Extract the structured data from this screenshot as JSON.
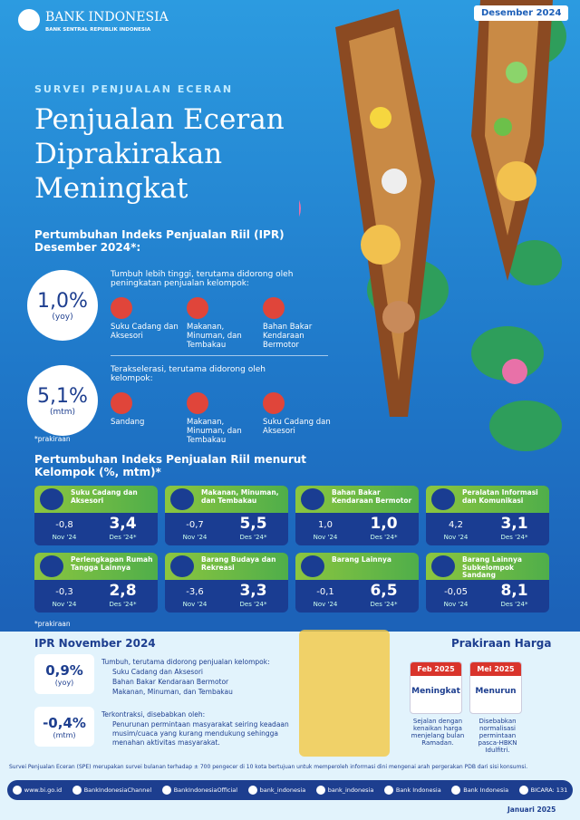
{
  "header": {
    "logo_name": "BANK INDONESIA",
    "logo_tagline": "BANK SENTRAL REPUBLIK INDONESIA",
    "date": "Desember 2024"
  },
  "hero": {
    "kicker": "SURVEI PENJUALAN ECERAN",
    "title_lines": [
      "Penjualan Eceran",
      "Diprakirakan",
      "Meningkat"
    ]
  },
  "ipr_december": {
    "heading": "Pertumbuhan Indeks Penjualan Riil (IPR) Desember 2024*:",
    "indicators": [
      {
        "value": "1,0%",
        "unit": "(yoy)",
        "description": "Tumbuh lebih tinggi, terutama didorong oleh peningkatan penjualan kelompok:",
        "groups": [
          "Suku Cadang dan Aksesori",
          "Makanan, Minuman, dan Tembakau",
          "Bahan Bakar Kendaraan Bermotor"
        ]
      },
      {
        "value": "5,1%",
        "unit": "(mtm)",
        "description": "Terakselerasi, terutama didorong oleh kelompok:",
        "groups": [
          "Sandang",
          "Makanan, Minuman, dan Tembakau",
          "Suku Cadang dan Aksesori"
        ]
      }
    ],
    "note": "*prakiraan"
  },
  "groups": {
    "heading": "Pertumbuhan Indeks Penjualan Riil menurut Kelompok (%, mtm)*",
    "cards": [
      {
        "name": "Suku Cadang dan Aksesori",
        "prev_value": "-0,8",
        "prev_label": "Nov '24",
        "curr_value": "3,4",
        "curr_label": "Des '24*"
      },
      {
        "name": "Makanan, Minuman, dan Tembakau",
        "prev_value": "-0,7",
        "prev_label": "Nov '24",
        "curr_value": "5,5",
        "curr_label": "Des '24*"
      },
      {
        "name": "Bahan Bakar Kendaraan Bermotor",
        "prev_value": "1,0",
        "prev_label": "Nov '24",
        "curr_value": "1,0",
        "curr_label": "Des '24*"
      },
      {
        "name": "Peralatan Informasi dan Komunikasi",
        "prev_value": "4,2",
        "prev_label": "Nov '24",
        "curr_value": "3,1",
        "curr_label": "Des '24*"
      },
      {
        "name": "Perlengkapan Rumah Tangga Lainnya",
        "prev_value": "-0,3",
        "prev_label": "Nov '24",
        "curr_value": "2,8",
        "curr_label": "Des '24*"
      },
      {
        "name": "Barang Budaya dan Rekreasi",
        "prev_value": "-3,6",
        "prev_label": "Nov '24",
        "curr_value": "3,3",
        "curr_label": "Des '24*"
      },
      {
        "name": "Barang Lainnya",
        "prev_value": "-0,1",
        "prev_label": "Nov '24",
        "curr_value": "6,5",
        "curr_label": "Des '24*"
      },
      {
        "name": "Barang Lainnya Subkelompok Sandang",
        "prev_value": "-0,05",
        "prev_label": "Nov '24",
        "curr_value": "8,1",
        "curr_label": "Des '24*"
      }
    ],
    "note": "*prakiraan"
  },
  "ipr_november": {
    "heading": "IPR November 2024",
    "rows": [
      {
        "value": "0,9%",
        "unit": "(yoy)",
        "description": "Tumbuh, terutama didorong penjualan kelompok:",
        "items": [
          "Suku Cadang dan Aksesori",
          "Bahan Bakar Kendaraan Bermotor",
          "Makanan, Minuman, dan Tembakau"
        ]
      },
      {
        "value": "-0,4%",
        "unit": "(mtm)",
        "description": "Terkontraksi, disebabkan oleh:",
        "items": [
          "Penurunan permintaan masyarakat seiring keadaan musim/cuaca yang kurang mendukung sehingga menahan aktivitas masyarakat."
        ]
      }
    ]
  },
  "price_outlook": {
    "heading": "Prakiraan Harga",
    "items": [
      {
        "month": "Feb 2025",
        "direction": "Meningkat",
        "description": "Sejalan dengan kenaikan harga menjelang bulan Ramadan."
      },
      {
        "month": "Mei 2025",
        "direction": "Menurun",
        "description": "Disebabkan normalisasi permintaan pasca-HBKN Idulfitri."
      }
    ]
  },
  "footer": {
    "note": "Survei Penjualan Eceran (SPE) merupakan survei bulanan terhadap ± 700 pengecer di 10 kota bertujuan untuk memperoleh informasi dini mengenai arah pergerakan PDB dari sisi konsumsi.",
    "social": [
      "www.bi.go.id",
      "BankIndonesiaChannel",
      "BankIndonesiaOfficial",
      "bank_indonesia",
      "bank_indonesia",
      "Bank Indonesia",
      "Bank Indonesia",
      "BICARA: 131"
    ],
    "date": "Januari 2025"
  }
}
